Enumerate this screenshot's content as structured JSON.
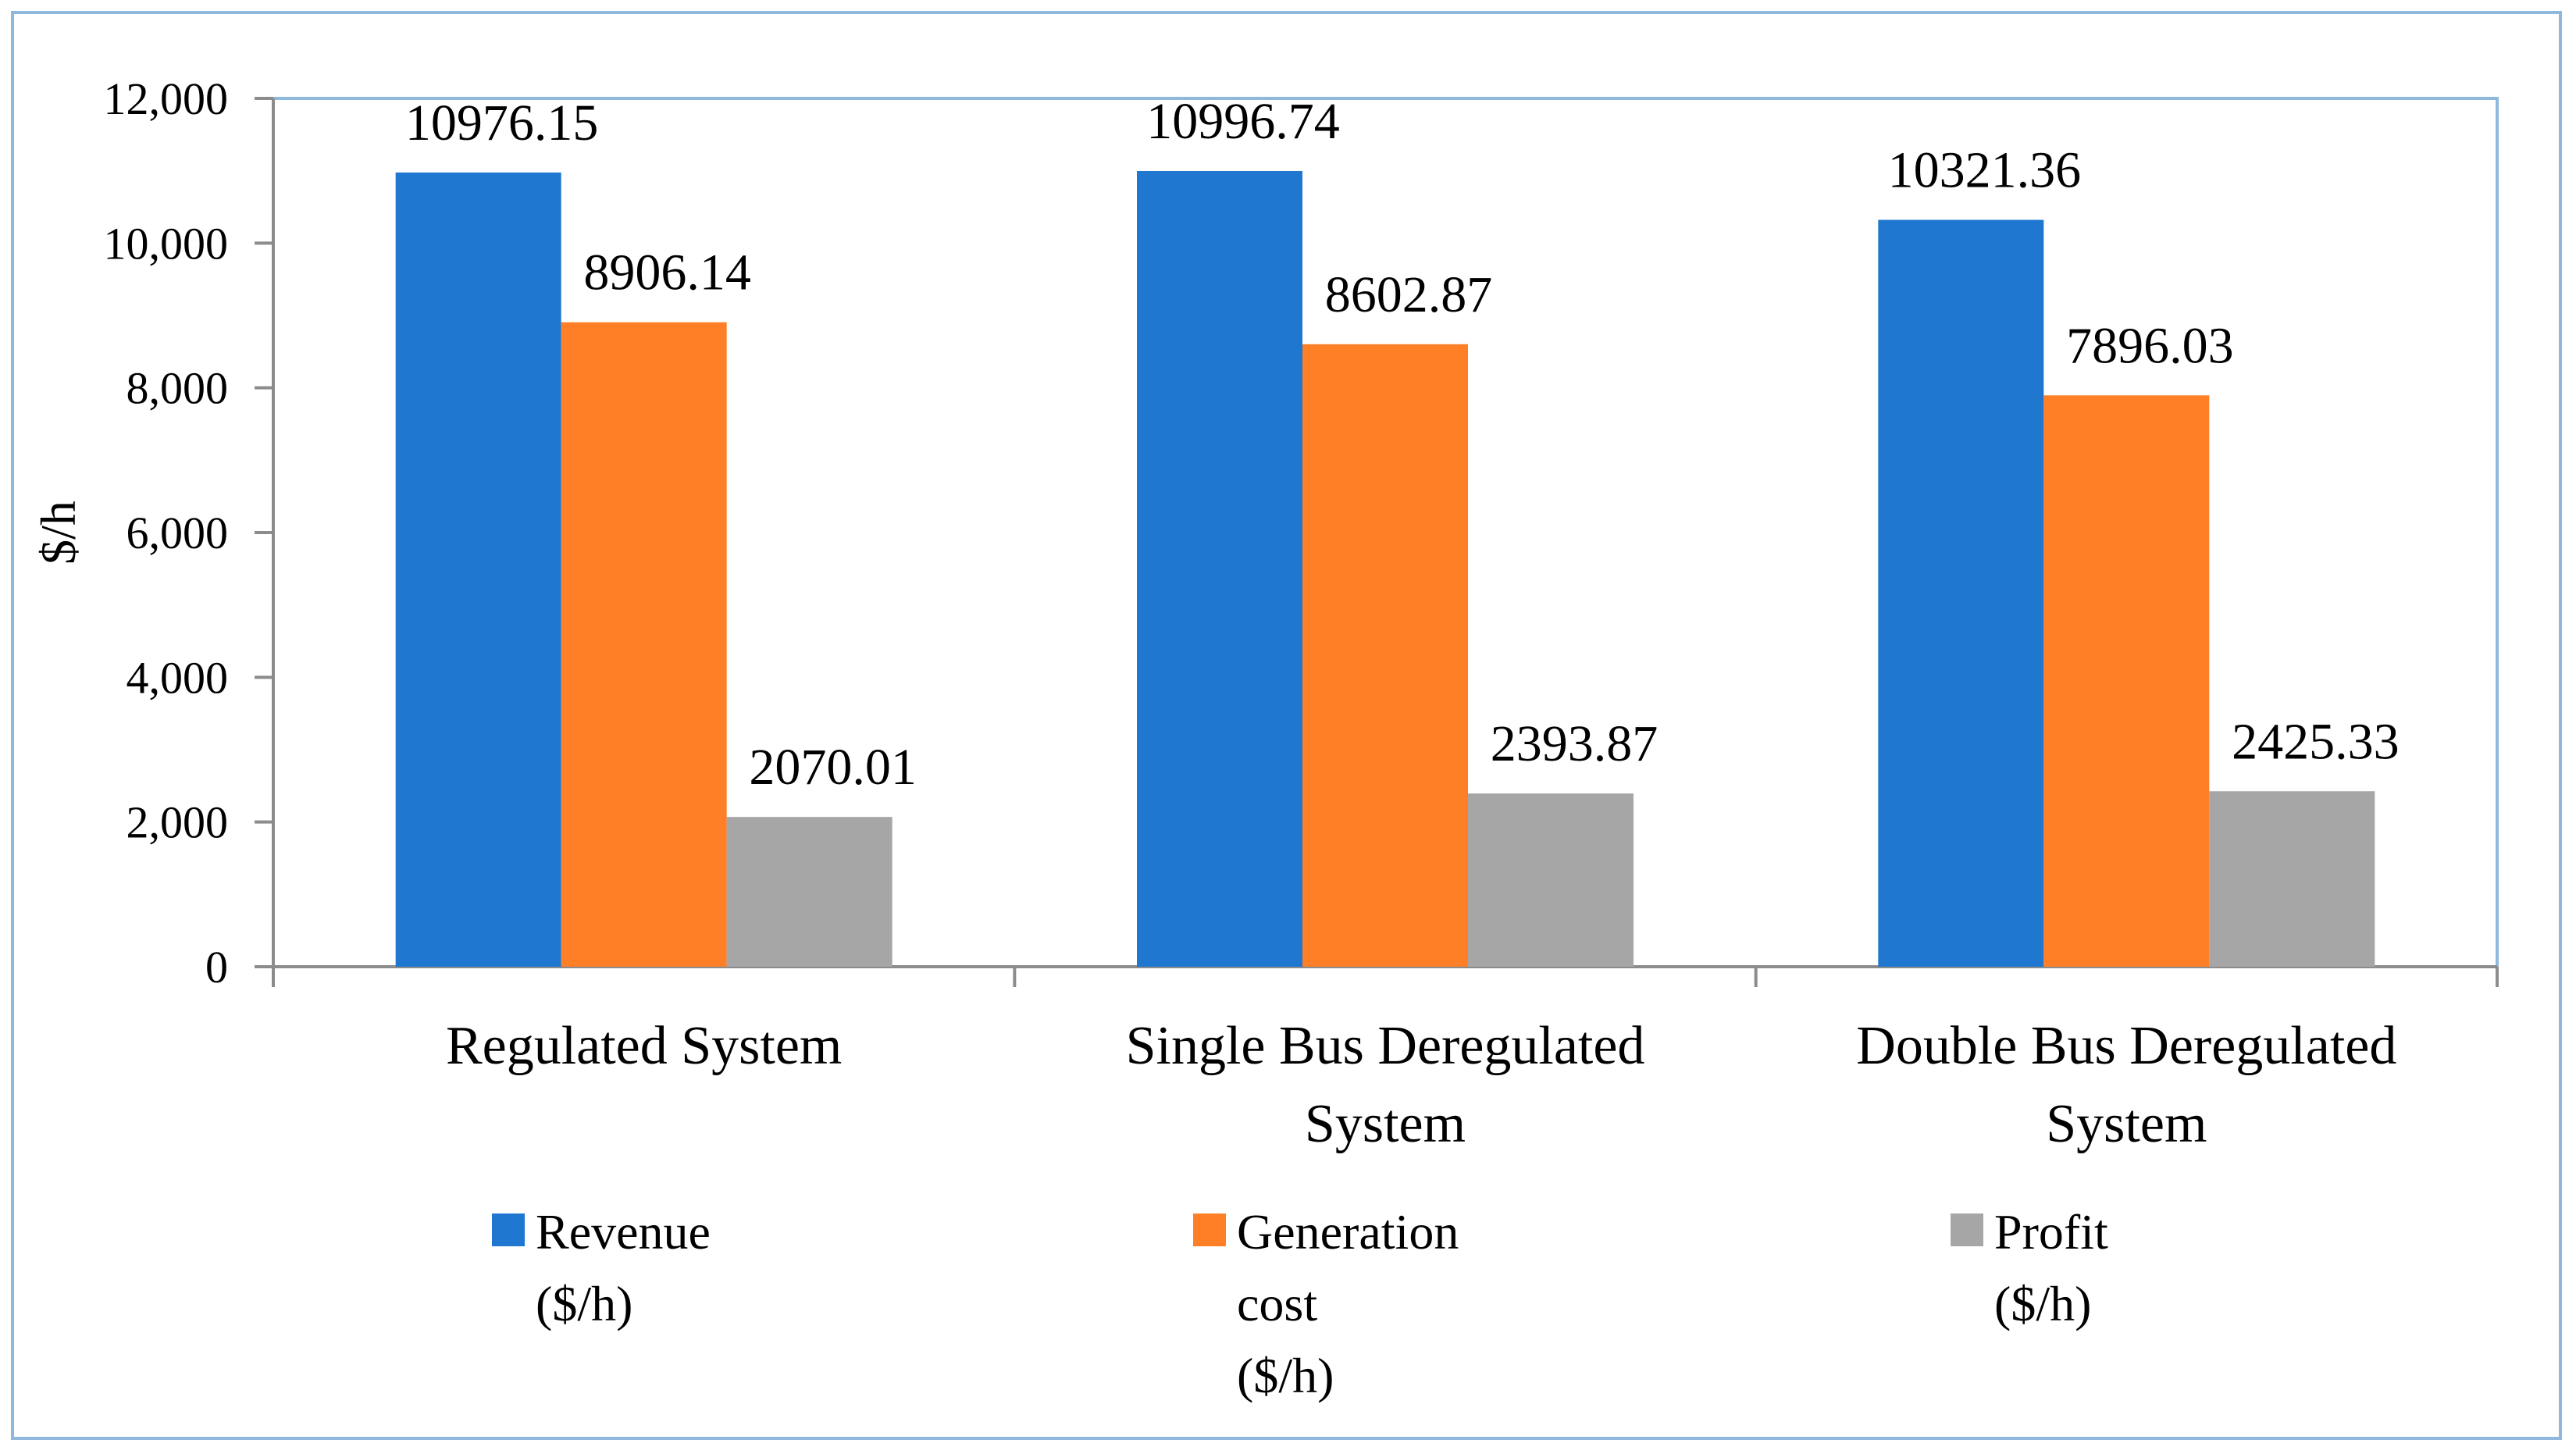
{
  "chart_data": {
    "type": "bar",
    "title": "",
    "xlabel": "",
    "ylabel": "$/h",
    "ylim": [
      0,
      12000
    ],
    "yticks": [
      0,
      2000,
      4000,
      6000,
      8000,
      10000,
      12000
    ],
    "ytick_labels": [
      "0",
      "2,000",
      "4,000",
      "6,000",
      "8,000",
      "10,000",
      "12,000"
    ],
    "categories": [
      "Regulated System",
      "Single Bus Deregulated System",
      "Double Bus Deregulated System"
    ],
    "category_lines": [
      [
        "Regulated System"
      ],
      [
        "Single Bus Deregulated",
        "System"
      ],
      [
        "Double Bus Deregulated",
        "System"
      ]
    ],
    "series": [
      {
        "name": "Revenue ($/h)",
        "legend_lines": [
          "Revenue",
          "($/h)"
        ],
        "color": "#1F77D0",
        "values": [
          10976.15,
          10996.74,
          10321.36
        ],
        "labels": [
          "10976.15",
          "10996.74",
          "10321.36"
        ]
      },
      {
        "name": "Generation cost ($/h)",
        "legend_lines": [
          "Generation",
          "cost",
          "($/h)"
        ],
        "color": "#FF7F27",
        "values": [
          8906.14,
          8602.87,
          7896.03
        ],
        "labels": [
          "8906.14",
          "8602.87",
          "7896.03"
        ]
      },
      {
        "name": "Profit ($/h)",
        "legend_lines": [
          "Profit",
          "($/h)"
        ],
        "color": "#A6A6A6",
        "values": [
          2070.01,
          2393.87,
          2425.33
        ],
        "labels": [
          "2070.01",
          "2393.87",
          "2425.33"
        ]
      }
    ],
    "grid": false,
    "legend_position": "bottom"
  }
}
